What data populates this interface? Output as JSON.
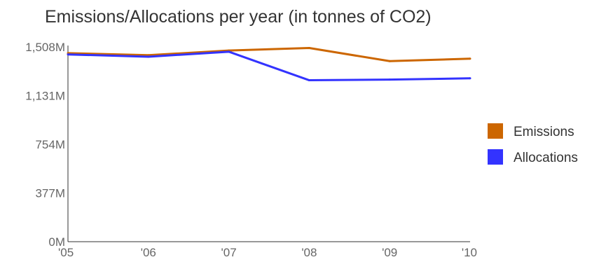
{
  "chart_data": {
    "type": "line",
    "title": "Emissions/Allocations per year (in tonnes of CO2)",
    "xlabel": "",
    "ylabel": "",
    "categories": [
      "'05",
      "'06",
      "'07",
      "'08",
      "'09",
      "'10"
    ],
    "y_ticks": [
      "0M",
      "377M",
      "754M",
      "1,131M",
      "1,508M"
    ],
    "ylim": [
      0,
      1508
    ],
    "grid": false,
    "legend_position": "right",
    "series": [
      {
        "name": "Emissions",
        "color": "#cc6600",
        "values": [
          1460,
          1444,
          1480,
          1500,
          1398,
          1417
        ]
      },
      {
        "name": "Allocations",
        "color": "#3333ff",
        "values": [
          1450,
          1432,
          1471,
          1250,
          1255,
          1265
        ]
      }
    ]
  }
}
